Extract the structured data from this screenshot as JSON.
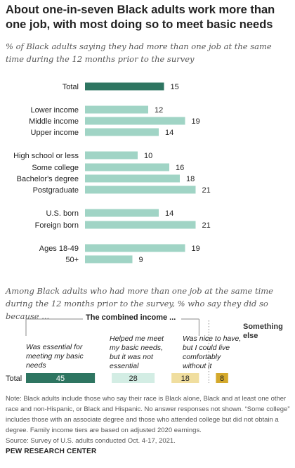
{
  "header": {
    "title": "About one-in-seven Black adults work more than one job, with most doing so to meet basic needs",
    "subtitle": "% of Black adults saying they had more than one job at the same time during the 12 months prior to the survey"
  },
  "chart_data": [
    {
      "type": "bar",
      "orientation": "horizontal",
      "categories": [
        "Total",
        "Lower income",
        "Middle income",
        "Upper income",
        "High school or less",
        "Some college",
        "Bachelor's degree",
        "Postgraduate",
        "U.S. born",
        "Foreign born",
        "Ages 18-49",
        "50+"
      ],
      "values": [
        15,
        12,
        19,
        14,
        10,
        16,
        18,
        21,
        14,
        21,
        19,
        9
      ],
      "groups": [
        [
          0
        ],
        [
          1,
          2,
          3
        ],
        [
          4,
          5,
          6,
          7
        ],
        [
          8,
          9
        ],
        [
          10,
          11
        ]
      ]
    },
    {
      "type": "bar",
      "orientation": "horizontal-stacked",
      "subtitle": "Among Black adults who had more than one job at the same time during the 12 months prior to the survey, % who say they did so because ...",
      "group_header": "The combined income ...",
      "categories": [
        "Total"
      ],
      "series": [
        {
          "name": "Was essential for meeting my basic needs",
          "values": [
            45
          ]
        },
        {
          "name": "Helped me meet my basic needs, but it was not essential",
          "values": [
            28
          ]
        },
        {
          "name": "Was nice to have, but I could live comfortably without it",
          "values": [
            18
          ]
        },
        {
          "name": "Something else",
          "values": [
            8
          ]
        }
      ]
    }
  ],
  "colors": {
    "total_bar": "#2e7561",
    "bar": "#a0d4c5",
    "seg1": "#2e7561",
    "seg2": "#d3ede4",
    "seg3": "#f0de9f",
    "seg4": "#d4a92c"
  },
  "footer": {
    "note": "Note: Black adults include those who say their race is Black alone, Black and at least one other race and non-Hispanic, or Black and Hispanic. No answer responses not shown. “Some college” includes those with an associate degree and those who attended college but did not obtain a degree. Family income tiers are based on adjusted 2020 earnings.",
    "source": "Source: Survey of U.S. adults conducted Oct. 4-17, 2021.",
    "brand": "PEW RESEARCH CENTER"
  }
}
